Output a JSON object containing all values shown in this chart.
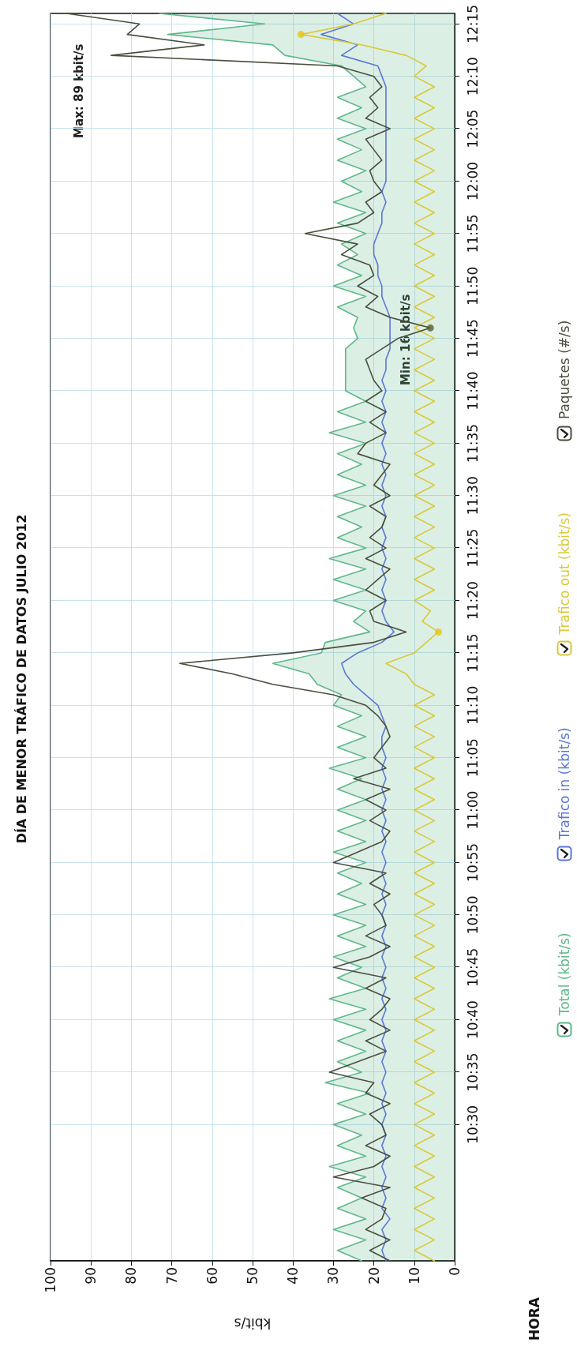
{
  "chart_data": {
    "type": "line",
    "title": "DÍA DE MENOR TRÁFICO DE DATOS JULIO 2012",
    "xlabel": "kbit/s",
    "ylabel": "HORA",
    "orientation": "horizontal",
    "annotations": [
      "Max: 89 kbit/s",
      "Min: 16 kbit/s"
    ],
    "x": [
      10.2833,
      10.3,
      10.3167,
      10.3333,
      10.35,
      10.3667,
      10.3833,
      10.4,
      10.4167,
      10.4333,
      10.45,
      10.4667,
      10.4833,
      10.5,
      10.5167,
      10.5333,
      10.55,
      10.5667,
      10.5833,
      10.6,
      10.6167,
      10.6333,
      10.65,
      10.6667,
      10.6833,
      10.7,
      10.7167,
      10.7333,
      10.75,
      10.7667,
      10.7833,
      10.8,
      10.8167,
      10.8333,
      10.85,
      10.8667,
      10.8833,
      10.9,
      10.9167,
      10.9333,
      10.95,
      10.9667,
      10.9833,
      11.0,
      11.0167,
      11.0333,
      11.05,
      11.0667,
      11.0833,
      11.1,
      11.1167,
      11.1333,
      11.15,
      11.1667,
      11.1833,
      11.2,
      11.2167,
      11.2333,
      11.25,
      11.2667,
      11.2833,
      11.3,
      11.3167,
      11.3333,
      11.35,
      11.3667,
      11.3833,
      11.4,
      11.4167,
      11.4333,
      11.45,
      11.4667,
      11.4833,
      11.5,
      11.5167,
      11.5333,
      11.55,
      11.5667,
      11.5833,
      11.6,
      11.6167,
      11.6333,
      11.65,
      11.6667,
      11.6833,
      11.7,
      11.7167,
      11.7333,
      11.75,
      11.7667,
      11.7833,
      11.8,
      11.8167,
      11.8333,
      11.85,
      11.8667,
      11.8833,
      11.9,
      11.9167,
      11.9333,
      11.95,
      11.9667,
      11.9833,
      12.0,
      12.0167,
      12.0333,
      12.05,
      12.0667,
      12.0833,
      12.1,
      12.1167,
      12.1333,
      12.15,
      12.1667,
      12.1833,
      12.2,
      12.2167,
      12.2333,
      12.25,
      12.2667
    ],
    "series": [
      {
        "name": "Total (kbit/s)",
        "type": "area",
        "color": "#5fb88a",
        "values": [
          23,
          29,
          22,
          30,
          22,
          29,
          23,
          29,
          22,
          31,
          22,
          29,
          23,
          30,
          22,
          29,
          21,
          32,
          23,
          29,
          22,
          29,
          22,
          30,
          22,
          31,
          22,
          29,
          23,
          30,
          22,
          29,
          22,
          30,
          22,
          29,
          23,
          29,
          22,
          30,
          22,
          29,
          22,
          29,
          22,
          29,
          23,
          31,
          22,
          29,
          22,
          29,
          23,
          30,
          28,
          34,
          36,
          45,
          33,
          32,
          21,
          25,
          22,
          30,
          22,
          30,
          22,
          31,
          22,
          29,
          23,
          29,
          22,
          30,
          22,
          29,
          23,
          29,
          22,
          31,
          22,
          29,
          22,
          27,
          27,
          27,
          27,
          27,
          24,
          25,
          24,
          29,
          22,
          30,
          23,
          29,
          24,
          28,
          22,
          29,
          22,
          30,
          23,
          28,
          22,
          29,
          23,
          29,
          22,
          29,
          23,
          29,
          22,
          25,
          28,
          42,
          45,
          71,
          47,
          73
        ]
      },
      {
        "name": "Trafico in (kbit/s)",
        "color": "#5a78d6",
        "values": [
          17,
          18,
          17,
          18,
          16,
          18,
          17,
          18,
          17,
          18,
          17,
          18,
          17,
          18,
          17,
          18,
          17,
          18,
          17,
          18,
          17,
          18,
          17,
          18,
          17,
          18,
          17,
          18,
          17,
          18,
          17,
          18,
          17,
          18,
          17,
          18,
          17,
          18,
          17,
          18,
          17,
          18,
          17,
          18,
          17,
          18,
          17,
          18,
          17,
          18,
          18,
          17,
          18,
          19,
          22,
          25,
          27,
          28,
          24,
          18,
          15,
          17,
          18,
          17,
          18,
          17,
          18,
          17,
          18,
          17,
          18,
          17,
          18,
          17,
          18,
          17,
          18,
          17,
          18,
          17,
          18,
          17,
          18,
          17,
          18,
          17,
          17,
          16,
          16,
          16,
          16,
          17,
          18,
          18,
          19,
          19,
          20,
          20,
          19,
          18,
          18,
          17,
          18,
          17,
          17,
          17,
          17,
          17,
          17,
          17,
          17,
          17,
          17,
          18,
          19,
          28,
          24,
          33,
          25,
          29
        ]
      },
      {
        "name": "Trafico out (kbit/s)",
        "color": "#d9c93a",
        "values": [
          5,
          10,
          5,
          10,
          5,
          10,
          5,
          10,
          5,
          10,
          5,
          10,
          5,
          10,
          5,
          10,
          5,
          10,
          5,
          10,
          5,
          10,
          5,
          10,
          5,
          10,
          5,
          10,
          5,
          10,
          5,
          10,
          5,
          10,
          5,
          10,
          5,
          10,
          5,
          10,
          5,
          10,
          5,
          10,
          5,
          10,
          5,
          10,
          5,
          10,
          5,
          10,
          5,
          10,
          5,
          10,
          12,
          17,
          10,
          7,
          4,
          8,
          6,
          10,
          5,
          10,
          5,
          10,
          5,
          10,
          5,
          10,
          5,
          10,
          5,
          10,
          5,
          10,
          5,
          10,
          5,
          10,
          5,
          10,
          5,
          10,
          5,
          10,
          5,
          10,
          5,
          10,
          5,
          10,
          5,
          10,
          5,
          10,
          5,
          10,
          5,
          10,
          5,
          10,
          5,
          10,
          5,
          10,
          5,
          10,
          5,
          10,
          5,
          10,
          7,
          12,
          23,
          38,
          25,
          17
        ]
      },
      {
        "name": "Paquetes (#/s)",
        "color": "#4a4f3e",
        "values": [
          16,
          21,
          16,
          22,
          18,
          17,
          23,
          16,
          30,
          20,
          16,
          22,
          17,
          18,
          21,
          16,
          22,
          20,
          31,
          24,
          17,
          22,
          16,
          21,
          18,
          16,
          22,
          17,
          30,
          21,
          16,
          22,
          17,
          18,
          20,
          16,
          21,
          17,
          30,
          24,
          18,
          16,
          21,
          17,
          22,
          16,
          25,
          17,
          20,
          18,
          16,
          17,
          19,
          22,
          30,
          45,
          55,
          68,
          40,
          20,
          12,
          20,
          21,
          17,
          22,
          19,
          16,
          22,
          17,
          21,
          18,
          17,
          21,
          16,
          20,
          18,
          16,
          24,
          22,
          17,
          21,
          17,
          22,
          18,
          20,
          21,
          22,
          18,
          14,
          6,
          16,
          22,
          19,
          24,
          20,
          21,
          28,
          24,
          37,
          24,
          20,
          22,
          18,
          20,
          21,
          18,
          20,
          22,
          16,
          22,
          19,
          21,
          18,
          20,
          29,
          85,
          62,
          81,
          78,
          96
        ]
      },
      {
        "type": "scatter",
        "marker": "circle",
        "color": "#5c6428",
        "x": [
          11.7667
        ],
        "values": [
          6
        ]
      },
      {
        "type": "scatter",
        "marker": "circle",
        "color": "#e8c414",
        "x": [
          11.2833,
          12.2333
        ],
        "values": [
          4,
          38
        ]
      }
    ],
    "ylim": [
      10.2833,
      12.2667
    ],
    "yticks": [
      {
        "value": 10.5,
        "label": "10:30"
      },
      {
        "value": 10.5833,
        "label": "10:35"
      },
      {
        "value": 10.6667,
        "label": "10:40"
      },
      {
        "value": 10.75,
        "label": "10:45"
      },
      {
        "value": 10.8333,
        "label": "10:50"
      },
      {
        "value": 10.9167,
        "label": "10:55"
      },
      {
        "value": 11.0,
        "label": "11:00"
      },
      {
        "value": 11.0833,
        "label": "11:05"
      },
      {
        "value": 11.1667,
        "label": "11:10"
      },
      {
        "value": 11.25,
        "label": "11:15"
      },
      {
        "value": 11.3333,
        "label": "11:20"
      },
      {
        "value": 11.4167,
        "label": "11:25"
      },
      {
        "value": 11.5,
        "label": "11:30"
      },
      {
        "value": 11.5833,
        "label": "11:35"
      },
      {
        "value": 11.6667,
        "label": "11:40"
      },
      {
        "value": 11.75,
        "label": "11:45"
      },
      {
        "value": 11.8333,
        "label": "11:50"
      },
      {
        "value": 11.9167,
        "label": "11:55"
      },
      {
        "value": 12.0,
        "label": "12:00"
      },
      {
        "value": 12.0833,
        "label": "12:05"
      },
      {
        "value": 12.1667,
        "label": "12:10"
      },
      {
        "value": 12.25,
        "label": "12:15"
      }
    ],
    "xlim": [
      100,
      0
    ],
    "xticks": [
      0,
      10,
      20,
      30,
      40,
      50,
      60,
      70,
      80,
      90,
      100
    ],
    "grid": true,
    "legend": "bottom",
    "marker": "none",
    "line_style": "solid"
  }
}
